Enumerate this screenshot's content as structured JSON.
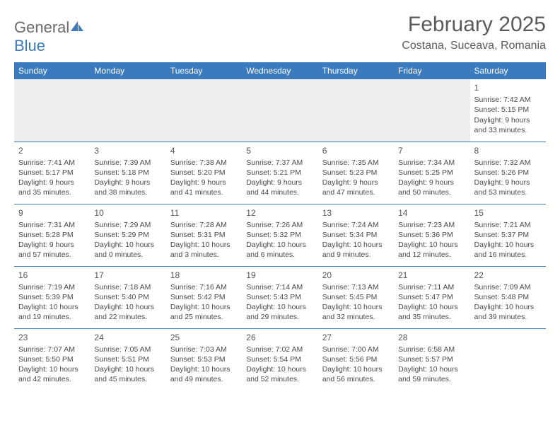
{
  "brand": {
    "part1": "General",
    "part2": "Blue"
  },
  "title": "February 2025",
  "location": "Costana, Suceava, Romania",
  "colors": {
    "header_bg": "#3a7abd",
    "header_text": "#ffffff",
    "border": "#3a7abd",
    "empty_bg": "#eeeeee",
    "text": "#4a4a4a"
  },
  "day_headers": [
    "Sunday",
    "Monday",
    "Tuesday",
    "Wednesday",
    "Thursday",
    "Friday",
    "Saturday"
  ],
  "weeks": [
    [
      null,
      null,
      null,
      null,
      null,
      null,
      {
        "n": "1",
        "sr": "Sunrise: 7:42 AM",
        "ss": "Sunset: 5:15 PM",
        "d1": "Daylight: 9 hours",
        "d2": "and 33 minutes."
      }
    ],
    [
      {
        "n": "2",
        "sr": "Sunrise: 7:41 AM",
        "ss": "Sunset: 5:17 PM",
        "d1": "Daylight: 9 hours",
        "d2": "and 35 minutes."
      },
      {
        "n": "3",
        "sr": "Sunrise: 7:39 AM",
        "ss": "Sunset: 5:18 PM",
        "d1": "Daylight: 9 hours",
        "d2": "and 38 minutes."
      },
      {
        "n": "4",
        "sr": "Sunrise: 7:38 AM",
        "ss": "Sunset: 5:20 PM",
        "d1": "Daylight: 9 hours",
        "d2": "and 41 minutes."
      },
      {
        "n": "5",
        "sr": "Sunrise: 7:37 AM",
        "ss": "Sunset: 5:21 PM",
        "d1": "Daylight: 9 hours",
        "d2": "and 44 minutes."
      },
      {
        "n": "6",
        "sr": "Sunrise: 7:35 AM",
        "ss": "Sunset: 5:23 PM",
        "d1": "Daylight: 9 hours",
        "d2": "and 47 minutes."
      },
      {
        "n": "7",
        "sr": "Sunrise: 7:34 AM",
        "ss": "Sunset: 5:25 PM",
        "d1": "Daylight: 9 hours",
        "d2": "and 50 minutes."
      },
      {
        "n": "8",
        "sr": "Sunrise: 7:32 AM",
        "ss": "Sunset: 5:26 PM",
        "d1": "Daylight: 9 hours",
        "d2": "and 53 minutes."
      }
    ],
    [
      {
        "n": "9",
        "sr": "Sunrise: 7:31 AM",
        "ss": "Sunset: 5:28 PM",
        "d1": "Daylight: 9 hours",
        "d2": "and 57 minutes."
      },
      {
        "n": "10",
        "sr": "Sunrise: 7:29 AM",
        "ss": "Sunset: 5:29 PM",
        "d1": "Daylight: 10 hours",
        "d2": "and 0 minutes."
      },
      {
        "n": "11",
        "sr": "Sunrise: 7:28 AM",
        "ss": "Sunset: 5:31 PM",
        "d1": "Daylight: 10 hours",
        "d2": "and 3 minutes."
      },
      {
        "n": "12",
        "sr": "Sunrise: 7:26 AM",
        "ss": "Sunset: 5:32 PM",
        "d1": "Daylight: 10 hours",
        "d2": "and 6 minutes."
      },
      {
        "n": "13",
        "sr": "Sunrise: 7:24 AM",
        "ss": "Sunset: 5:34 PM",
        "d1": "Daylight: 10 hours",
        "d2": "and 9 minutes."
      },
      {
        "n": "14",
        "sr": "Sunrise: 7:23 AM",
        "ss": "Sunset: 5:36 PM",
        "d1": "Daylight: 10 hours",
        "d2": "and 12 minutes."
      },
      {
        "n": "15",
        "sr": "Sunrise: 7:21 AM",
        "ss": "Sunset: 5:37 PM",
        "d1": "Daylight: 10 hours",
        "d2": "and 16 minutes."
      }
    ],
    [
      {
        "n": "16",
        "sr": "Sunrise: 7:19 AM",
        "ss": "Sunset: 5:39 PM",
        "d1": "Daylight: 10 hours",
        "d2": "and 19 minutes."
      },
      {
        "n": "17",
        "sr": "Sunrise: 7:18 AM",
        "ss": "Sunset: 5:40 PM",
        "d1": "Daylight: 10 hours",
        "d2": "and 22 minutes."
      },
      {
        "n": "18",
        "sr": "Sunrise: 7:16 AM",
        "ss": "Sunset: 5:42 PM",
        "d1": "Daylight: 10 hours",
        "d2": "and 25 minutes."
      },
      {
        "n": "19",
        "sr": "Sunrise: 7:14 AM",
        "ss": "Sunset: 5:43 PM",
        "d1": "Daylight: 10 hours",
        "d2": "and 29 minutes."
      },
      {
        "n": "20",
        "sr": "Sunrise: 7:13 AM",
        "ss": "Sunset: 5:45 PM",
        "d1": "Daylight: 10 hours",
        "d2": "and 32 minutes."
      },
      {
        "n": "21",
        "sr": "Sunrise: 7:11 AM",
        "ss": "Sunset: 5:47 PM",
        "d1": "Daylight: 10 hours",
        "d2": "and 35 minutes."
      },
      {
        "n": "22",
        "sr": "Sunrise: 7:09 AM",
        "ss": "Sunset: 5:48 PM",
        "d1": "Daylight: 10 hours",
        "d2": "and 39 minutes."
      }
    ],
    [
      {
        "n": "23",
        "sr": "Sunrise: 7:07 AM",
        "ss": "Sunset: 5:50 PM",
        "d1": "Daylight: 10 hours",
        "d2": "and 42 minutes."
      },
      {
        "n": "24",
        "sr": "Sunrise: 7:05 AM",
        "ss": "Sunset: 5:51 PM",
        "d1": "Daylight: 10 hours",
        "d2": "and 45 minutes."
      },
      {
        "n": "25",
        "sr": "Sunrise: 7:03 AM",
        "ss": "Sunset: 5:53 PM",
        "d1": "Daylight: 10 hours",
        "d2": "and 49 minutes."
      },
      {
        "n": "26",
        "sr": "Sunrise: 7:02 AM",
        "ss": "Sunset: 5:54 PM",
        "d1": "Daylight: 10 hours",
        "d2": "and 52 minutes."
      },
      {
        "n": "27",
        "sr": "Sunrise: 7:00 AM",
        "ss": "Sunset: 5:56 PM",
        "d1": "Daylight: 10 hours",
        "d2": "and 56 minutes."
      },
      {
        "n": "28",
        "sr": "Sunrise: 6:58 AM",
        "ss": "Sunset: 5:57 PM",
        "d1": "Daylight: 10 hours",
        "d2": "and 59 minutes."
      },
      null
    ]
  ]
}
